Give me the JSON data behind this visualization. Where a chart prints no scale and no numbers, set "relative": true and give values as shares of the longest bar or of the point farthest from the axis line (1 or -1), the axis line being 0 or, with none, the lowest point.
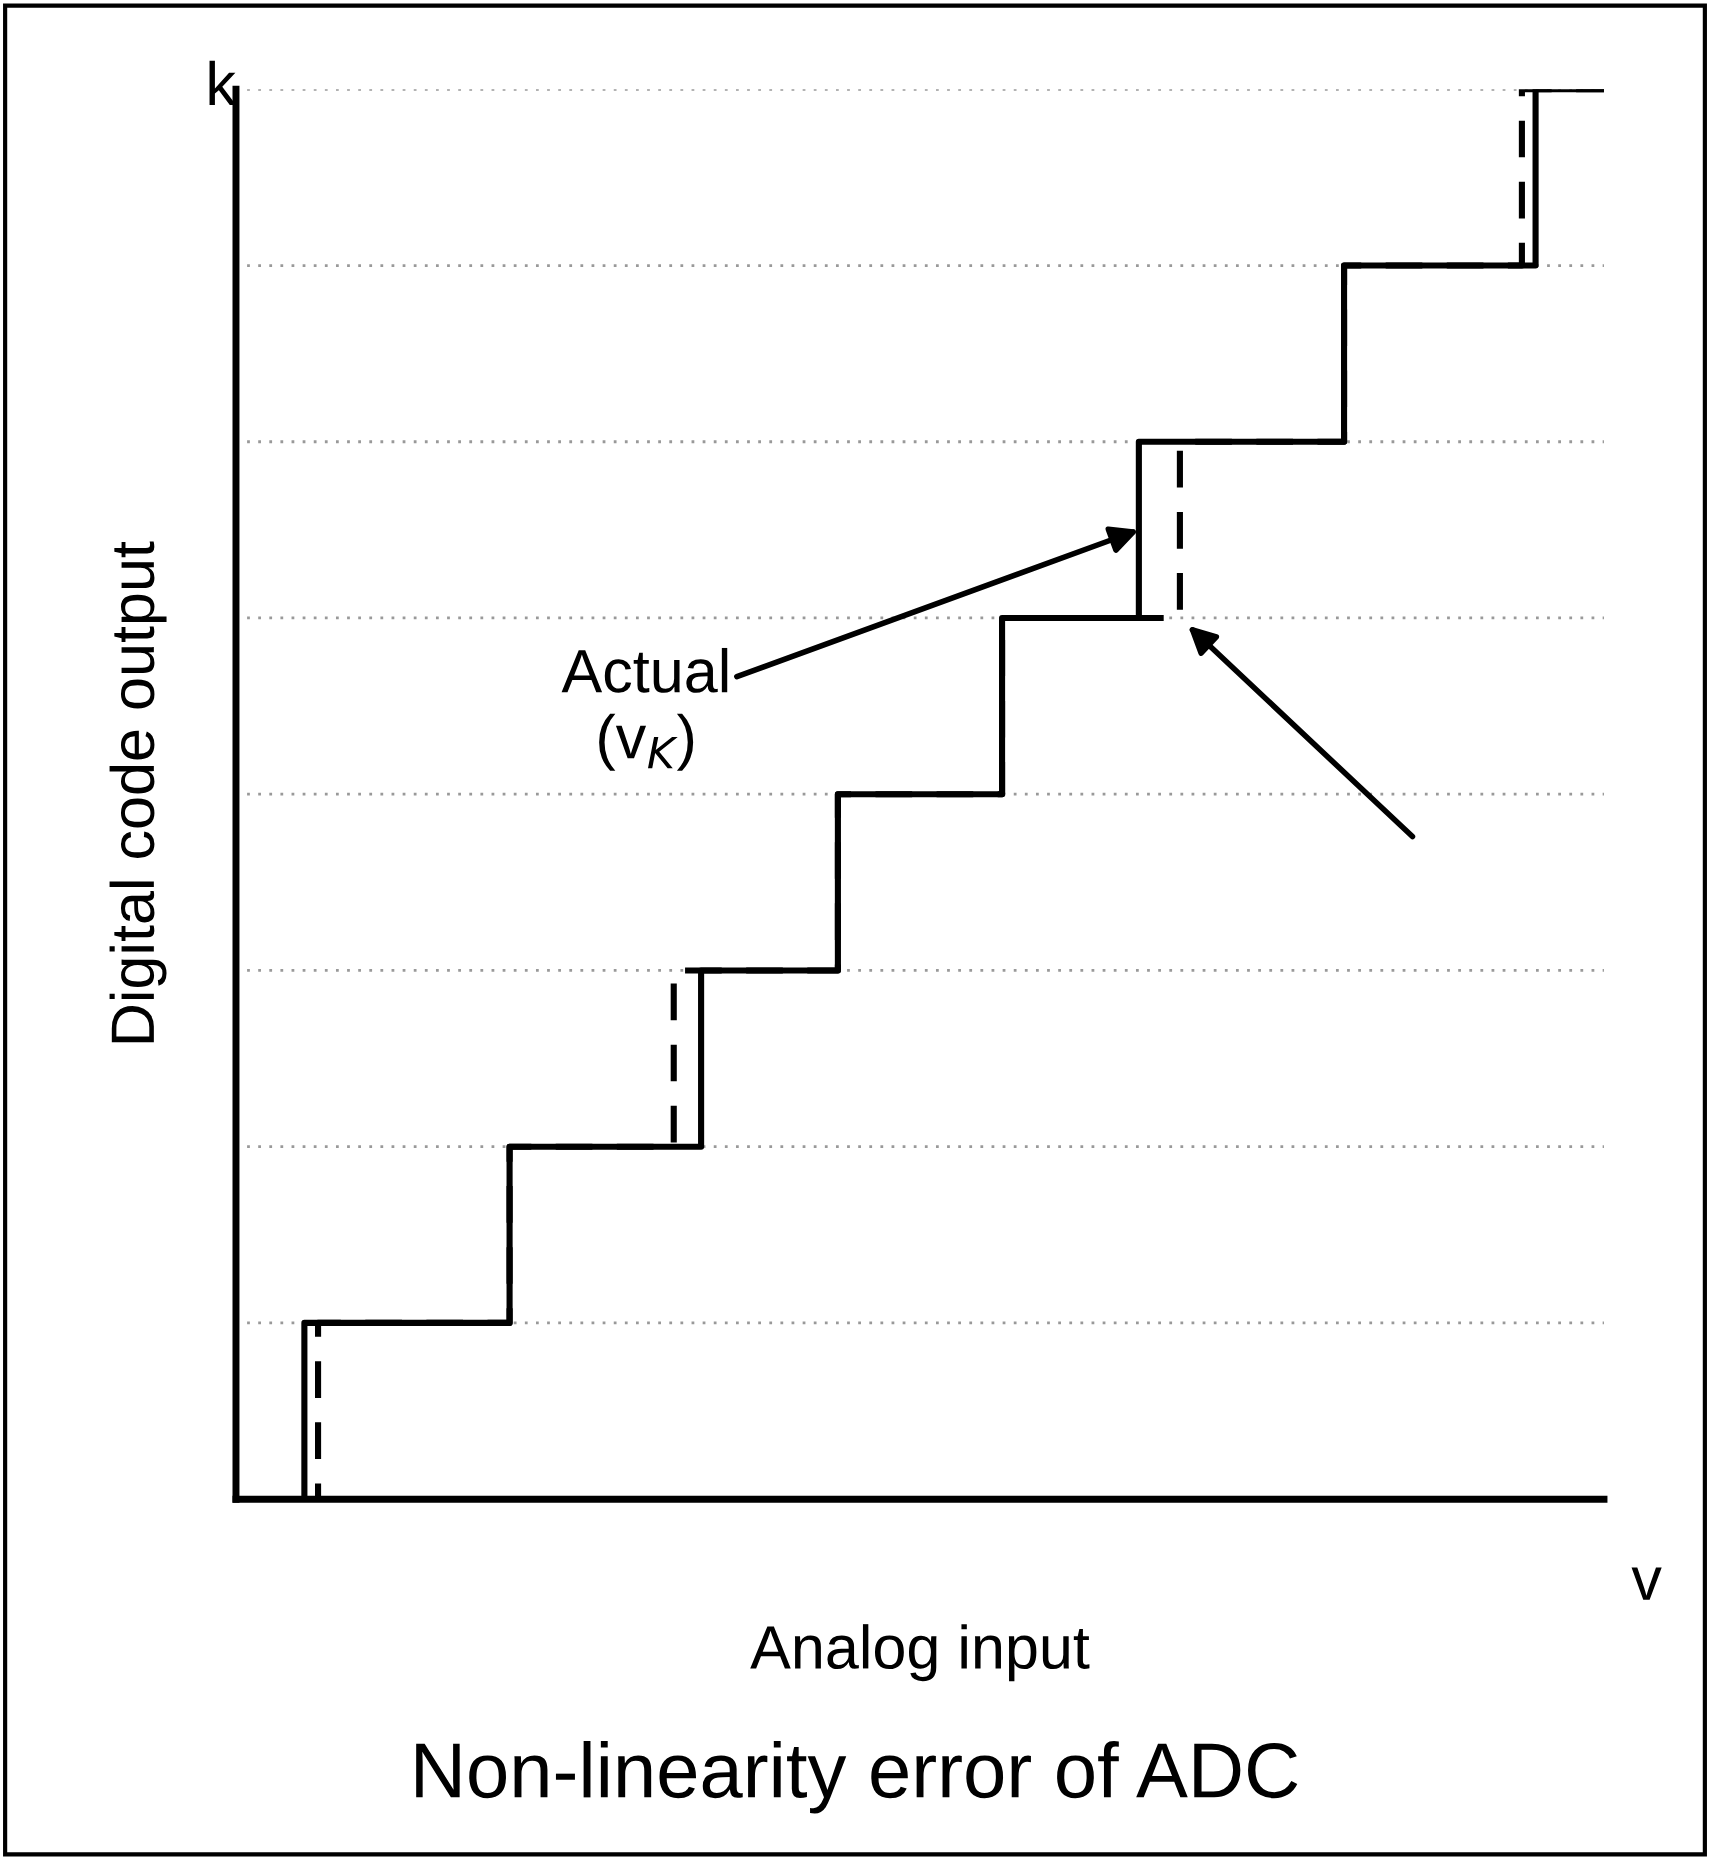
{
  "chart_data": {
    "type": "step",
    "title": "Non-linearity error of ADC",
    "xlabel": "Analog input",
    "ylabel": "Digital code output",
    "relative": true,
    "legend": false,
    "grid": "y",
    "categories": [
      null,
      null,
      null,
      null,
      null,
      null,
      null,
      null,
      null,
      null,
      null,
      null,
      null,
      null,
      null,
      null,
      null,
      null,
      null,
      null,
      null,
      null,
      null,
      null,
      null,
      null,
      null,
      null,
      null,
      null,
      null,
      null,
      null,
      null,
      null,
      null,
      null,
      null,
      null,
      null,
      null,
      null,
      null,
      null,
      null,
      null,
      null,
      null,
      null,
      null,
      null,
      null,
      null,
      null,
      null,
      null,
      null,
      null,
      null,
      null,
      null,
      null,
      null,
      null,
      null,
      null,
      null,
      null,
      null,
      null,
      null,
      null,
      null,
      null,
      null,
      null,
      null,
      null,
      null,
      null,
      null,
      null,
      null,
      null,
      null,
      null,
      null,
      null,
      null,
      null,
      null,
      null,
      null,
      null,
      null,
      null,
      null,
      null,
      null,
      null,
      null
    ],
    "series": [
      {
        "color": "#000000",
        "line_style": "dashed",
        "values": [
          0,
          0,
          0,
          0,
          0,
          0,
          0.125,
          0.125,
          0.125,
          0.125,
          0.125,
          0.125,
          0.125,
          0.125,
          0.125,
          0.125,
          0.125,
          0.125,
          0.125,
          0.125,
          0.25,
          0.25,
          0.25,
          0.25,
          0.25,
          0.25,
          0.25,
          0.25,
          0.25,
          0.25,
          0.25,
          0.25,
          0.375,
          0.375,
          0.375,
          0.375,
          0.375,
          0.375,
          0.375,
          0.375,
          0.375,
          0.375,
          0.375,
          0.375,
          0.5,
          0.5,
          0.5,
          0.5,
          0.5,
          0.5,
          0.5,
          0.5,
          0.5,
          0.5,
          0.5,
          0.5,
          0.625,
          0.625,
          0.625,
          0.625,
          0.625,
          0.625,
          0.625,
          0.625,
          0.625,
          0.625,
          0.625,
          0.625,
          0.625,
          0.75,
          0.75,
          0.75,
          0.75,
          0.75,
          0.75,
          0.75,
          0.75,
          0.75,
          0.75,
          0.75,
          0.75,
          0.875,
          0.875,
          0.875,
          0.875,
          0.875,
          0.875,
          0.875,
          0.875,
          0.875,
          0.875,
          0.875,
          0.875,
          0.875,
          1,
          1,
          1,
          1,
          1,
          1,
          1
        ]
      },
      {
        "color": "#000000",
        "line_style": "solid",
        "values": [
          0,
          0,
          0,
          0,
          0,
          0.125,
          0.125,
          0.125,
          0.125,
          0.125,
          0.125,
          0.125,
          0.125,
          0.125,
          0.125,
          0.125,
          0.125,
          0.125,
          0.125,
          0.125,
          0.25,
          0.25,
          0.25,
          0.25,
          0.25,
          0.25,
          0.25,
          0.25,
          0.25,
          0.25,
          0.25,
          0.25,
          0.25,
          0.25,
          0.375,
          0.375,
          0.375,
          0.375,
          0.375,
          0.375,
          0.375,
          0.375,
          0.375,
          0.375,
          0.5,
          0.5,
          0.5,
          0.5,
          0.5,
          0.5,
          0.5,
          0.5,
          0.5,
          0.5,
          0.5,
          0.5,
          0.625,
          0.625,
          0.625,
          0.625,
          0.625,
          0.625,
          0.625,
          0.625,
          0.625,
          0.625,
          0.75,
          0.75,
          0.75,
          0.75,
          0.75,
          0.75,
          0.75,
          0.75,
          0.75,
          0.75,
          0.75,
          0.75,
          0.75,
          0.75,
          0.75,
          0.875,
          0.875,
          0.875,
          0.875,
          0.875,
          0.875,
          0.875,
          0.875,
          0.875,
          0.875,
          0.875,
          0.875,
          0.875,
          0.875,
          1,
          1,
          1,
          1,
          1,
          1
        ]
      }
    ],
    "annotations": [
      "k",
      "v",
      "Actual\n(v$_{K}$)"
    ]
  }
}
